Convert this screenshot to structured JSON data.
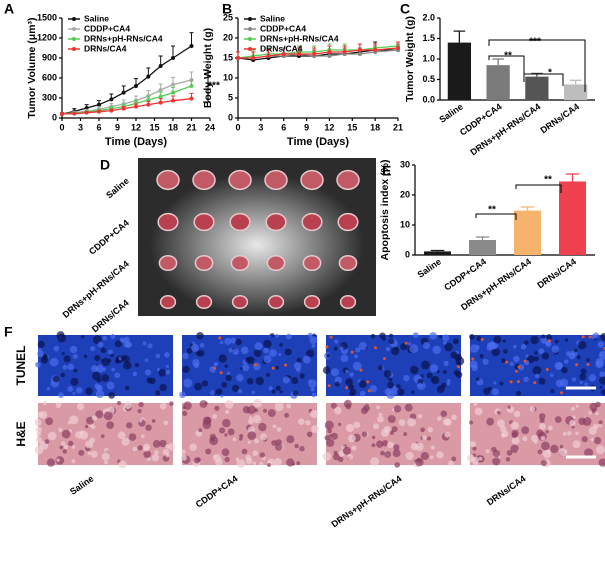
{
  "panels": [
    "A",
    "B",
    "C",
    "D",
    "E",
    "F"
  ],
  "chart_data": [
    {
      "type": "line",
      "x_label": "Time (Days)",
      "y_label": "Tumor Volume (μm³)",
      "x": [
        0,
        2,
        4,
        6,
        8,
        10,
        12,
        14,
        16,
        18,
        21
      ],
      "xlim": [
        0,
        24
      ],
      "xticks": [
        0,
        3,
        6,
        9,
        12,
        15,
        18,
        21,
        24
      ],
      "ylim": [
        0,
        1500
      ],
      "yticks": [
        0,
        300,
        600,
        900,
        1200,
        1500
      ],
      "series": [
        {
          "name": "Saline",
          "color": "#111111",
          "values": [
            60,
            100,
            150,
            200,
            280,
            380,
            480,
            620,
            780,
            900,
            1080
          ],
          "errors": [
            20,
            40,
            50,
            60,
            80,
            100,
            110,
            130,
            150,
            180,
            200
          ]
        },
        {
          "name": "CDDP+CA4",
          "color": "#aaaaaa",
          "values": [
            60,
            80,
            100,
            130,
            170,
            210,
            260,
            330,
            420,
            500,
            570
          ],
          "errors": [
            15,
            20,
            30,
            40,
            50,
            60,
            70,
            80,
            90,
            110,
            120
          ]
        },
        {
          "name": "DRNs+pH-RNs/CA4",
          "color": "#55cc55",
          "values": [
            60,
            70,
            90,
            110,
            140,
            170,
            220,
            270,
            320,
            380,
            480
          ],
          "errors": [
            10,
            15,
            20,
            25,
            30,
            40,
            50,
            60,
            70,
            80,
            90
          ]
        },
        {
          "name": "DRNs/CA4",
          "color": "#ee3333",
          "values": [
            60,
            65,
            80,
            95,
            110,
            140,
            170,
            200,
            230,
            260,
            290
          ],
          "errors": [
            10,
            10,
            15,
            20,
            25,
            30,
            40,
            50,
            60,
            70,
            80
          ]
        }
      ],
      "annotations": [
        "***"
      ]
    },
    {
      "type": "line",
      "x_label": "Time (Days)",
      "y_label": "Body Weight (g)",
      "x": [
        0,
        2,
        4,
        6,
        8,
        10,
        12,
        14,
        16,
        18,
        21
      ],
      "xlim": [
        0,
        21
      ],
      "xticks": [
        0,
        3,
        6,
        9,
        12,
        15,
        18,
        21
      ],
      "ylim": [
        0,
        25
      ],
      "yticks": [
        0,
        5,
        10,
        15,
        20,
        25
      ],
      "series": [
        {
          "name": "Saline",
          "color": "#111111",
          "values": [
            15,
            14.5,
            15,
            15.5,
            15.5,
            15.5,
            16,
            16,
            16.5,
            17,
            17
          ],
          "errors": [
            1.5,
            2,
            2,
            2,
            2,
            1.5,
            2,
            2,
            2,
            2,
            1.5
          ]
        },
        {
          "name": "CDDP+CA4",
          "color": "#888888",
          "values": [
            15,
            15,
            15.5,
            15.5,
            16,
            15.5,
            15.5,
            16,
            16,
            16.5,
            17
          ],
          "errors": [
            1.5,
            1.5,
            1.5,
            2,
            1.5,
            1.5,
            1.5,
            1.5,
            1.5,
            1.5,
            1.5
          ]
        },
        {
          "name": "DRNs+pH-RNs/CA4",
          "color": "#55cc55",
          "values": [
            15,
            15.5,
            16,
            16,
            16.5,
            16.5,
            17,
            17,
            17,
            17.5,
            18
          ],
          "errors": [
            1.5,
            1.5,
            1.5,
            1.5,
            1.5,
            1.5,
            1.5,
            1.5,
            1.5,
            1,
            1
          ]
        },
        {
          "name": "DRNs/CA4",
          "color": "#ee3333",
          "values": [
            15,
            15,
            15.5,
            16,
            16,
            16,
            16.5,
            16.5,
            17,
            17,
            17.5
          ],
          "errors": [
            1.5,
            1.5,
            1.5,
            1.5,
            1.5,
            1.5,
            1.5,
            1.5,
            1.5,
            1.5,
            1.5
          ]
        }
      ],
      "annotations": []
    },
    {
      "type": "bar",
      "y_label": "Tumor Weight (g)",
      "categories": [
        "Saline",
        "CDDP+CA4",
        "DRNs+pH-RNs/CA4",
        "DRNs/CA4"
      ],
      "values": [
        1.4,
        0.85,
        0.57,
        0.38
      ],
      "errors": [
        0.28,
        0.15,
        0.08,
        0.1
      ],
      "colors": [
        "#1a1a1a",
        "#7a7a7a",
        "#555555",
        "#bdbdbd"
      ],
      "ylim": [
        0,
        2
      ],
      "yticks": [
        {
          "value": 0,
          "label": "0.0"
        },
        0.5,
        {
          "value": 1,
          "label": "1.0"
        },
        1.5,
        {
          "value": 2,
          "label": "2.0"
        }
      ],
      "annotations": [
        "***",
        "**",
        "*"
      ]
    },
    {
      "type": "bar",
      "y_label": "Apoptosis index (%)",
      "categories": [
        "Saline",
        "CDDP+CA4",
        "DRNs+pH-RNs/CA4",
        "DRNs/CA4"
      ],
      "values": [
        1.2,
        5,
        14.8,
        24.5
      ],
      "errors": [
        0.3,
        1,
        1.2,
        2.5
      ],
      "colors": [
        "#1a1a1a",
        "#8a8a8a",
        "#f6b36b",
        "#f0414e"
      ],
      "ylim": [
        0,
        30
      ],
      "yticks": [
        0,
        10,
        20,
        30
      ],
      "annotations": [
        "**",
        "**"
      ]
    }
  ],
  "photo_labels": [
    "Saline",
    "CDDP+CA4",
    "DRNs+pH-RNs/CA4",
    "DRNs/CA4"
  ],
  "stain_rows": [
    "TUNEL",
    "H&E"
  ],
  "stain_columns": [
    "Saline",
    "CDDP+CA4",
    "DRNs+pH-RNs/CA4",
    "DRNs/CA4"
  ]
}
